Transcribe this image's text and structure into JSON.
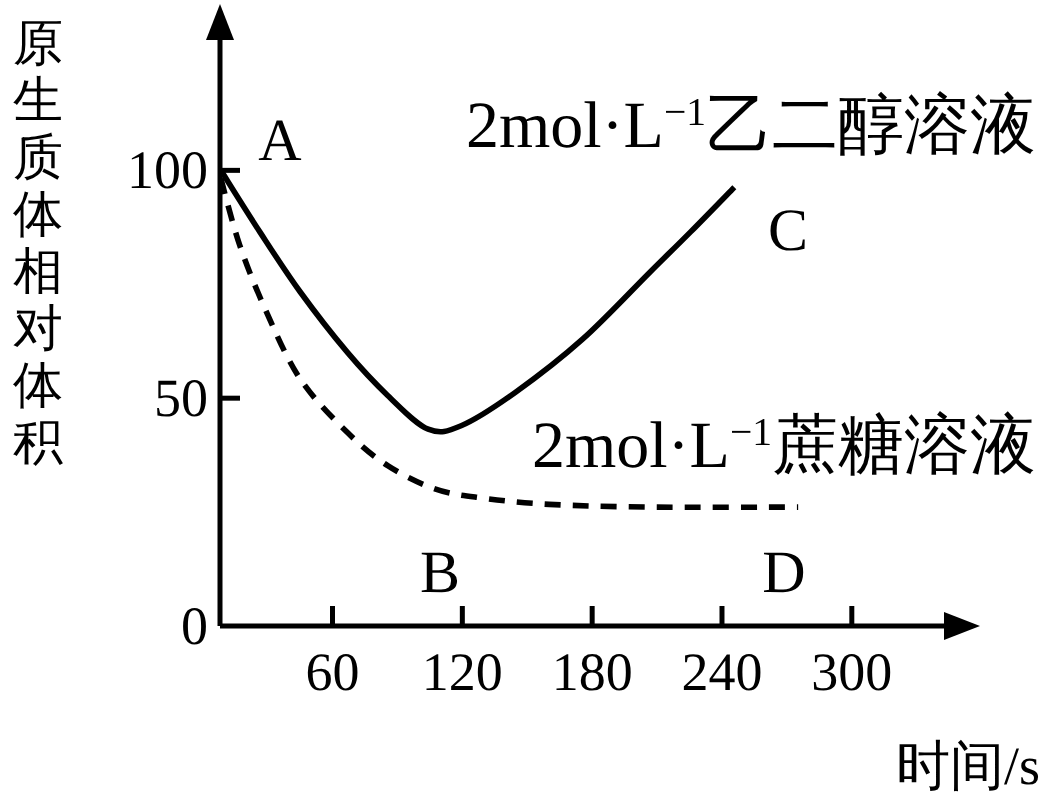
{
  "chart_data": {
    "type": "line",
    "xlabel": "时间/s",
    "ylabel": "原生质体相对体积",
    "xlim": [
      8,
      350
    ],
    "ylim": [
      0,
      133
    ],
    "xticks": [
      60,
      120,
      180,
      240,
      300
    ],
    "yticks": [
      0,
      50,
      100
    ],
    "series": [
      {
        "name": "2mol·L$^{−1}$乙二醇溶液",
        "color": "#000000",
        "line_style": "solid",
        "x": [
          8.4,
          26.4,
          45.1,
          66.8,
          85.5,
          104.2,
          119.7,
          144.6,
          175.7,
          206.8,
          225.5,
          245.7
        ],
        "values": [
          100,
          86.5,
          73.3,
          60.1,
          50.6,
          43.2,
          44,
          51.3,
          63,
          77.7,
          86.5,
          96.3
        ]
      },
      {
        "name": "2mol·L$^{−1}$蔗糖溶液",
        "color": "#000000",
        "line_style": "dashed",
        "x": [
          8.4,
          17.1,
          29.5,
          45.1,
          66.8,
          85.5,
          107.3,
          129,
          160.1,
          206.8,
          275.2
        ],
        "values": [
          98.2,
          83.6,
          68.9,
          54.2,
          42.5,
          35.2,
          30.1,
          28.1,
          26.7,
          26.1,
          26.1
        ]
      }
    ],
    "annotations": [
      "A",
      "B",
      "C",
      "D"
    ],
    "grid": false,
    "marker": "none"
  }
}
